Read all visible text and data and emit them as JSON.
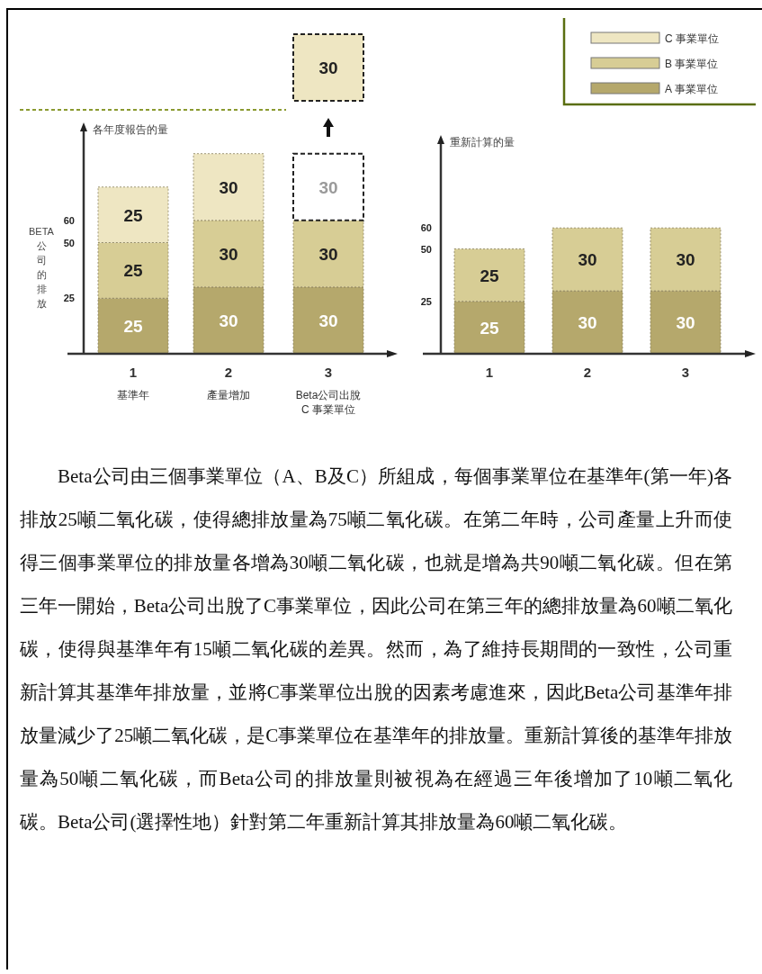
{
  "chart_data": [
    {
      "type": "bar",
      "stacked": true,
      "title": "各年度報告的量",
      "ylabel": "BETA公司的排放",
      "categories": [
        "1\n基準年",
        "2\n產量增加",
        "3\nBeta公司出脫\nC 事業單位"
      ],
      "ylim": [
        0,
        100
      ],
      "yticks": [
        25,
        50,
        60
      ],
      "data_labels": true,
      "legend": "top right",
      "series": [
        {
          "name": "A 事業單位",
          "color": "#b5a86c",
          "values": [
            25,
            30,
            30
          ]
        },
        {
          "name": "B 事業單位",
          "color": "#d7cd95",
          "values": [
            25,
            30,
            30
          ]
        },
        {
          "name": "C 事業單位",
          "color": "#eee6c2",
          "colors": [
            "#eee6c2",
            "#eee6c2",
            "#ffffff"
          ],
          "values": [
            25,
            30,
            30
          ]
        }
      ],
      "annotations": [
        "30"
      ]
    },
    {
      "type": "bar",
      "stacked": true,
      "title": "重新計算的量",
      "categories": [
        "1",
        "2",
        "3"
      ],
      "ylim": [
        0,
        100
      ],
      "yticks": [
        25,
        50,
        60
      ],
      "data_labels": true,
      "series": [
        {
          "color": "#b5a86c",
          "values": [
            25,
            30,
            30
          ]
        },
        {
          "color": "#d7cd95",
          "values": [
            25,
            30,
            30
          ]
        }
      ]
    },
    {
      "type": "other",
      "annotations": [
        "Beta公司由三個事業單位（A、B及C）所組成，每個事業單位在基準年(第一年)各排放25噸二氧化碳，使得總排放量為75噸二氧化碳。在第二年時，公司產量上升而使得三個事業單位的排放量各增為30噸二氧化碳，也就是增為共90噸二氧化碳。但在第三年一開始，Beta公司出脫了C事業單位，因此公司在第三年的總排放量為60噸二氧化碳，使得與基準年有15噸二氧化碳的差異。然而，為了維持長期間的一致性，公司重新計算其基準年排放量，並將C事業單位出脫的因素考慮進來，因此Beta公司基準年排放量減少了25噸二氧化碳，是C事業單位在基準年的排放量。重新計算後的基準年排放量為50噸二氧化碳，而Beta公司的排放量則被視為在經過三年後增加了10噸二氧化碳。Beta公司(選擇性地）針對第二年重新計算其排放量為60噸二氧化碳。"
      ]
    }
  ]
}
